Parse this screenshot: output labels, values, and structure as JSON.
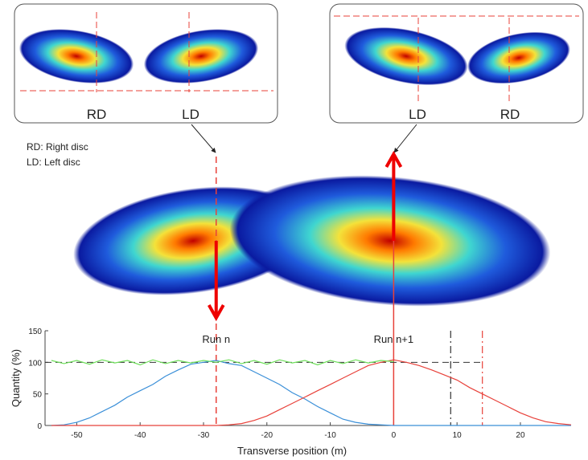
{
  "panels": {
    "left_labels": [
      "RD",
      "LD"
    ],
    "right_labels": [
      "LD",
      "RD"
    ]
  },
  "legend_note": [
    "RD: Right disc",
    "LD: Left disc"
  ],
  "chart_data": {
    "type": "line",
    "xlabel": "Transverse position (m)",
    "ylabel": "Quantity (%)",
    "xlim": [
      -55,
      28
    ],
    "ylim": [
      0,
      150
    ],
    "xticks": [
      -50,
      -40,
      -30,
      -20,
      -10,
      0,
      10,
      20
    ],
    "yticks": [
      0,
      50,
      100,
      150
    ],
    "x": [
      -54,
      -52,
      -50,
      -48,
      -46,
      -44,
      -42,
      -40,
      -38,
      -36,
      -34,
      -32,
      -30,
      -28,
      -26,
      -24,
      -22,
      -20,
      -18,
      -16,
      -14,
      -12,
      -10,
      -8,
      -6,
      -4,
      -2,
      0,
      2,
      4,
      6,
      8,
      10,
      12,
      14,
      16,
      18,
      20,
      22,
      24,
      26,
      28
    ],
    "series": [
      {
        "color": "#3a8fd8",
        "values": [
          0,
          1,
          5,
          12,
          22,
          32,
          45,
          55,
          65,
          78,
          88,
          97,
          100,
          103,
          98,
          95,
          85,
          75,
          65,
          52,
          42,
          30,
          20,
          10,
          5,
          2,
          1,
          0,
          0,
          0,
          0,
          0,
          0,
          0,
          0,
          0,
          0,
          0,
          0,
          0,
          0,
          0
        ]
      },
      {
        "color": "#e8413a",
        "values": [
          0,
          0,
          0,
          0,
          0,
          0,
          0,
          0,
          0,
          0,
          0,
          0,
          0,
          0,
          1,
          3,
          8,
          15,
          25,
          35,
          45,
          55,
          65,
          75,
          85,
          95,
          100,
          104,
          100,
          95,
          88,
          80,
          72,
          60,
          50,
          40,
          30,
          20,
          12,
          6,
          3,
          1
        ]
      },
      {
        "color": "#6ee05a",
        "values": [
          103,
          98,
          103,
          97,
          104,
          99,
          103,
          96,
          104,
          98,
          103,
          99,
          103,
          100,
          104,
          98,
          103,
          97,
          104,
          99,
          103,
          96,
          103,
          98,
          104,
          99,
          103,
          101,
          null,
          null,
          null,
          null,
          null,
          null,
          null,
          null,
          null,
          null,
          null,
          null,
          null,
          null
        ]
      }
    ],
    "hline": {
      "value": 100,
      "x_end": 14,
      "color": "#333333"
    },
    "vlines": [
      {
        "value": -28,
        "color": "#e8413a",
        "style": "dashed"
      },
      {
        "value": 0,
        "color": "#e8413a",
        "style": "solid"
      },
      {
        "value": 9,
        "color": "#333333",
        "style": "dashdot"
      },
      {
        "value": 14,
        "color": "#e8413a",
        "style": "dashdot"
      }
    ],
    "annotations": [
      {
        "text": "Run n",
        "x": -28
      },
      {
        "text": "Run n+1",
        "x": 0
      }
    ]
  }
}
